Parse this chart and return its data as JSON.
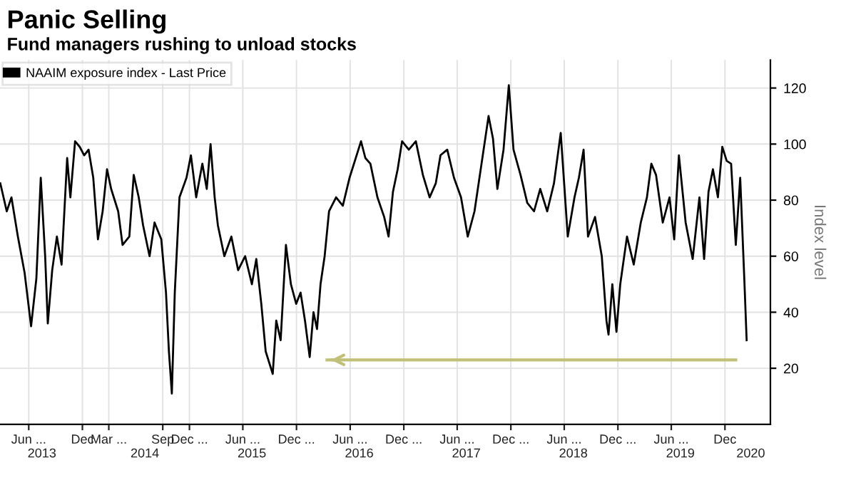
{
  "chart_data": {
    "type": "line",
    "title": "Panic Selling",
    "subtitle": "Fund managers rushing to unload stocks",
    "ylabel": "Index level",
    "legend": "top left",
    "grid": true,
    "line_style": "solid",
    "marker": "none",
    "xlim": [
      "2013-02-23",
      "2020-05-04"
    ],
    "ylim": [
      0,
      130
    ],
    "yticks": [
      20,
      40,
      60,
      80,
      100,
      120
    ],
    "xticks": [
      {
        "value": "2013-06-01",
        "label": "Jun ..."
      },
      {
        "value": "2013-12-01",
        "label": "Dec"
      },
      {
        "value": "2014-03-01",
        "label": "Mar ..."
      },
      {
        "value": "2014-09-01",
        "label": "Sep"
      },
      {
        "value": "2014-12-01",
        "label": "Dec ..."
      },
      {
        "value": "2015-06-01",
        "label": "Jun ..."
      },
      {
        "value": "2015-12-01",
        "label": "Dec ..."
      },
      {
        "value": "2016-06-01",
        "label": "Jun ..."
      },
      {
        "value": "2016-12-01",
        "label": "Dec ..."
      },
      {
        "value": "2017-06-01",
        "label": "Jun ..."
      },
      {
        "value": "2017-12-01",
        "label": "Dec ..."
      },
      {
        "value": "2018-06-01",
        "label": "Jun ..."
      },
      {
        "value": "2018-12-01",
        "label": "Dec ..."
      },
      {
        "value": "2019-06-01",
        "label": "Jun ..."
      },
      {
        "value": "2019-12-01",
        "label": "Dec"
      }
    ],
    "x2lim": [
      "2013-02-23",
      "2020-05-04"
    ],
    "x2ticks": [
      {
        "value": "2013-07-16",
        "label": "2013"
      },
      {
        "value": "2014-07-02",
        "label": "2014"
      },
      {
        "value": "2015-07-02",
        "label": "2015"
      },
      {
        "value": "2016-07-02",
        "label": "2016"
      },
      {
        "value": "2017-07-02",
        "label": "2017"
      },
      {
        "value": "2018-07-02",
        "label": "2018"
      },
      {
        "value": "2019-07-02",
        "label": "2019"
      },
      {
        "value": "2020-02-27",
        "label": "2020"
      }
    ],
    "series": [
      {
        "color": "#c2c078",
        "x": [
          "2016-03-14",
          "2020-01-07"
        ],
        "values": [
          23,
          23
        ]
      },
      {
        "name": "NAAIM exposure index - Last Price",
        "color": "#000000",
        "x": [
          "2013-02-24",
          "2013-03-18",
          "2013-04-03",
          "2013-04-25",
          "2013-05-18",
          "2013-06-09",
          "2013-06-27",
          "2013-07-12",
          "2013-07-27",
          "2013-08-05",
          "2013-08-20",
          "2013-09-05",
          "2013-09-21",
          "2013-10-10",
          "2013-10-21",
          "2013-11-06",
          "2013-11-22",
          "2013-12-07",
          "2013-12-22",
          "2014-01-07",
          "2014-01-23",
          "2014-02-08",
          "2014-02-23",
          "2014-03-09",
          "2014-04-02",
          "2014-04-17",
          "2014-05-10",
          "2014-05-25",
          "2014-06-11",
          "2014-06-26",
          "2014-07-18",
          "2014-08-04",
          "2014-08-27",
          "2014-09-12",
          "2014-09-22",
          "2014-10-02",
          "2014-10-12",
          "2014-10-28",
          "2014-11-21",
          "2014-12-06",
          "2014-12-24",
          "2015-01-14",
          "2015-01-29",
          "2015-02-11",
          "2015-02-25",
          "2015-03-08",
          "2015-03-30",
          "2015-04-23",
          "2015-05-16",
          "2015-06-09",
          "2015-07-02",
          "2015-07-17",
          "2015-08-03",
          "2015-08-18",
          "2015-09-11",
          "2015-09-23",
          "2015-10-08",
          "2015-10-26",
          "2015-11-12",
          "2015-11-30",
          "2015-12-15",
          "2015-12-30",
          "2016-01-15",
          "2016-01-28",
          "2016-02-09",
          "2016-02-21",
          "2016-03-06",
          "2016-03-21",
          "2016-04-14",
          "2016-05-07",
          "2016-05-30",
          "2016-06-23",
          "2016-07-08",
          "2016-07-23",
          "2016-08-09",
          "2016-09-02",
          "2016-09-25",
          "2016-10-10",
          "2016-10-25",
          "2016-11-10",
          "2016-11-25",
          "2016-12-18",
          "2017-01-11",
          "2017-02-04",
          "2017-02-27",
          "2017-03-20",
          "2017-04-05",
          "2017-04-28",
          "2017-05-21",
          "2017-06-14",
          "2017-07-07",
          "2017-07-30",
          "2017-08-23",
          "2017-09-16",
          "2017-10-01",
          "2017-10-16",
          "2017-11-06",
          "2017-11-24",
          "2017-12-10",
          "2018-01-03",
          "2018-01-26",
          "2018-02-18",
          "2018-03-11",
          "2018-04-04",
          "2018-04-27",
          "2018-05-20",
          "2018-06-13",
          "2018-07-06",
          "2018-07-21",
          "2018-08-06",
          "2018-08-21",
          "2018-09-14",
          "2018-10-07",
          "2018-10-23",
          "2018-10-30",
          "2018-11-12",
          "2018-11-26",
          "2018-12-09",
          "2019-01-01",
          "2019-01-24",
          "2019-02-17",
          "2019-03-10",
          "2019-03-25",
          "2019-04-10",
          "2019-05-03",
          "2019-05-26",
          "2019-06-11",
          "2019-06-27",
          "2019-07-20",
          "2019-08-13",
          "2019-09-05",
          "2019-09-21",
          "2019-10-06",
          "2019-10-21",
          "2019-11-07",
          "2019-11-22",
          "2019-12-07",
          "2019-12-22",
          "2020-01-07",
          "2020-01-22",
          "2020-02-05",
          "2020-02-13"
        ],
        "values": [
          86,
          76,
          81,
          67,
          54,
          35,
          52,
          88,
          60,
          36,
          55,
          67,
          57,
          95,
          81,
          101,
          99,
          96,
          98,
          88,
          66,
          76,
          91,
          84,
          76,
          64,
          67,
          89,
          81,
          71,
          60,
          72,
          66,
          47,
          26,
          11,
          47,
          81,
          88,
          96,
          81,
          93,
          84,
          100,
          81,
          71,
          60,
          67,
          55,
          60,
          50,
          59,
          43,
          26,
          18,
          37,
          30,
          64,
          50,
          43,
          47,
          37,
          24,
          40,
          34,
          50,
          60,
          76,
          81,
          78,
          88,
          96,
          101,
          95,
          93,
          81,
          74,
          67,
          83,
          91,
          101,
          98,
          101,
          89,
          81,
          86,
          96,
          98,
          88,
          81,
          67,
          76,
          93,
          110,
          102,
          84,
          98,
          121,
          98,
          89,
          79,
          76,
          84,
          76,
          86,
          104,
          67,
          81,
          88,
          98,
          67,
          74,
          60,
          37,
          32,
          50,
          33,
          50,
          67,
          57,
          72,
          81,
          93,
          89,
          72,
          81,
          66,
          96,
          72,
          59,
          81,
          59,
          83,
          91,
          81,
          99,
          94,
          93,
          64,
          88,
          52,
          30
        ]
      }
    ]
  }
}
